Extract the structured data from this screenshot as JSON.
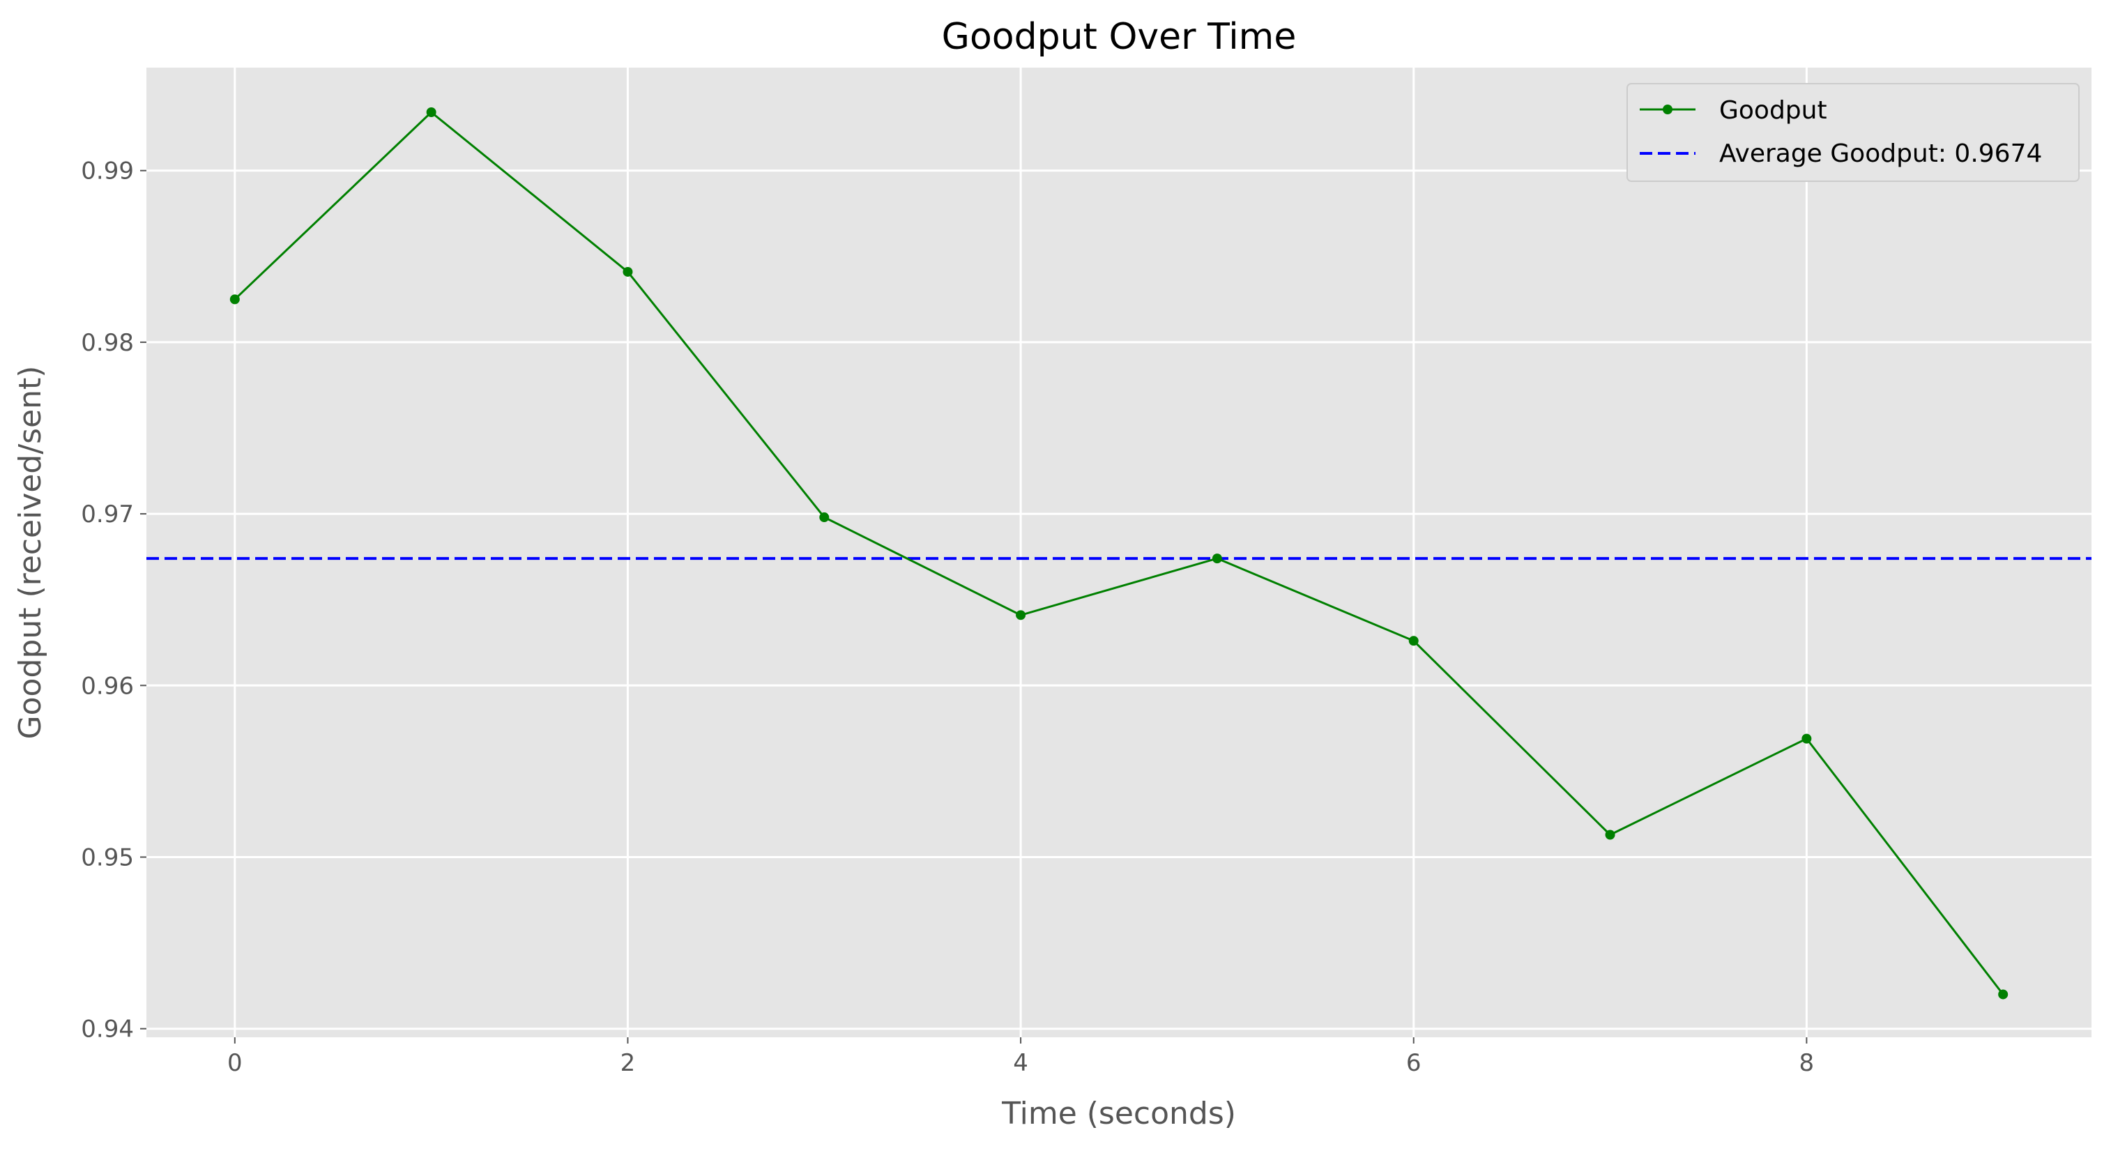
{
  "chart_data": {
    "type": "line",
    "title": "Goodput Over Time",
    "xlabel": "Time (seconds)",
    "ylabel": "Goodput (received/sent)",
    "xlim": [
      -0.45,
      9.45
    ],
    "ylim": [
      0.9395,
      0.996
    ],
    "xticks": [
      0,
      2,
      4,
      6,
      8
    ],
    "yticks": [
      0.94,
      0.95,
      0.96,
      0.97,
      0.98,
      0.99
    ],
    "ytick_labels": [
      "0.94",
      "0.95",
      "0.96",
      "0.97",
      "0.98",
      "0.99"
    ],
    "grid": true,
    "legend_position": "top-right",
    "series": [
      {
        "name": "Goodput",
        "color": "#008000",
        "style": "solid",
        "marker": "circle",
        "x": [
          0,
          1,
          2,
          3,
          4,
          5,
          6,
          7,
          8,
          9
        ],
        "y": [
          0.9825,
          0.9934,
          0.9841,
          0.9698,
          0.9641,
          0.9674,
          0.9626,
          0.9513,
          0.9569,
          0.942
        ]
      }
    ],
    "reference_lines": [
      {
        "name": "Average Goodput: 0.9674",
        "value": 0.9674,
        "color": "#0000ff",
        "style": "dashed"
      }
    ]
  }
}
